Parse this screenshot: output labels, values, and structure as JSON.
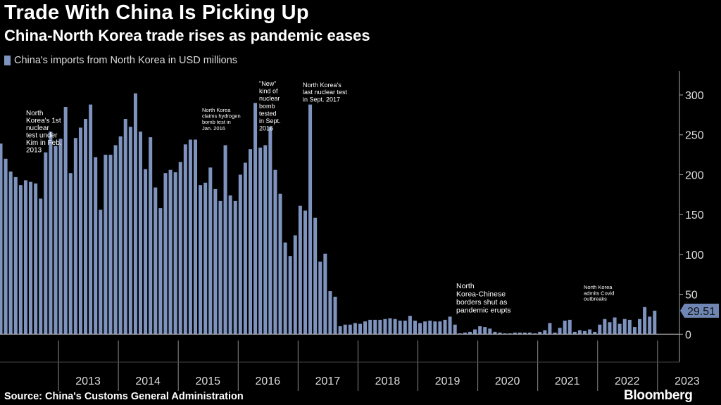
{
  "header": {
    "title": "Trade With China Is Picking Up",
    "subtitle": "China-North Korea trade rises as pandemic eases",
    "legend_label": "China's imports from North Korea in USD millions"
  },
  "footer": {
    "source": "Source: China's Customs General Administration",
    "brand": "Bloomberg"
  },
  "colors": {
    "bar": "#7f93bf",
    "label_bg": "#6f86b4",
    "axis": "#aaaaaa",
    "background": "#000000"
  },
  "last_value_label": "29.51",
  "chart_data": {
    "type": "bar",
    "title": "Trade With China Is Picking Up",
    "subtitle": "China-North Korea trade rises as pandemic eases",
    "series_name": "China's imports from North Korea in USD millions",
    "ylabel": "USD millions",
    "ylim": [
      -35,
      330
    ],
    "yticks": [
      0,
      50,
      100,
      150,
      200,
      250,
      300
    ],
    "year_labels": [
      "2013",
      "2014",
      "2015",
      "2016",
      "2017",
      "2018",
      "2019",
      "2020",
      "2021",
      "2022",
      "2023"
    ],
    "start": "2012-01",
    "values": [
      239,
      220,
      204,
      197,
      187,
      193,
      191,
      189,
      170,
      228,
      254,
      236,
      245,
      285,
      202,
      246,
      259,
      270,
      288,
      222,
      156,
      225,
      225,
      237,
      248,
      270,
      260,
      302,
      254,
      207,
      247,
      184,
      158,
      202,
      206,
      203,
      216,
      238,
      244,
      244,
      187,
      190,
      209,
      182,
      167,
      237,
      174,
      167,
      200,
      215,
      232,
      290,
      234,
      237,
      260,
      206,
      176,
      115,
      98,
      124,
      161,
      155,
      288,
      146,
      91,
      101,
      54,
      47,
      10,
      12,
      12,
      14,
      13,
      16,
      18,
      18,
      18,
      19,
      20,
      19,
      17,
      17,
      23,
      17,
      14,
      16,
      17,
      16,
      16,
      18,
      22,
      12,
      1,
      2,
      3,
      6,
      10,
      9,
      7,
      3,
      2,
      1,
      1,
      2,
      2,
      2,
      2,
      1,
      3,
      5,
      14,
      2,
      8,
      17,
      18,
      3,
      5,
      4,
      6,
      3,
      12,
      19,
      15,
      21,
      13,
      19,
      18,
      9,
      19,
      34,
      22,
      29.51
    ],
    "annotations": [
      {
        "text": [
          "North",
          "Korea's 1st",
          "nuclear",
          "test under",
          "Kim in Feb.",
          "2013"
        ]
      },
      {
        "text": [
          "North Korea",
          "claims hydrogen",
          "bomb test in",
          "Jan. 2016"
        ]
      },
      {
        "text": [
          "\"New\"",
          "kind of",
          "nuclear",
          "bomb",
          "tested",
          "in Sept.",
          "2016"
        ]
      },
      {
        "text": [
          "North Korea's",
          "last nuclear test",
          "in Sept. 2017"
        ]
      },
      {
        "text": [
          "North",
          "Korea-Chinese",
          "borders shut as",
          "pandemic erupts"
        ]
      },
      {
        "text": [
          "North Korea",
          "admits Covid",
          "outbreaks"
        ]
      }
    ]
  }
}
